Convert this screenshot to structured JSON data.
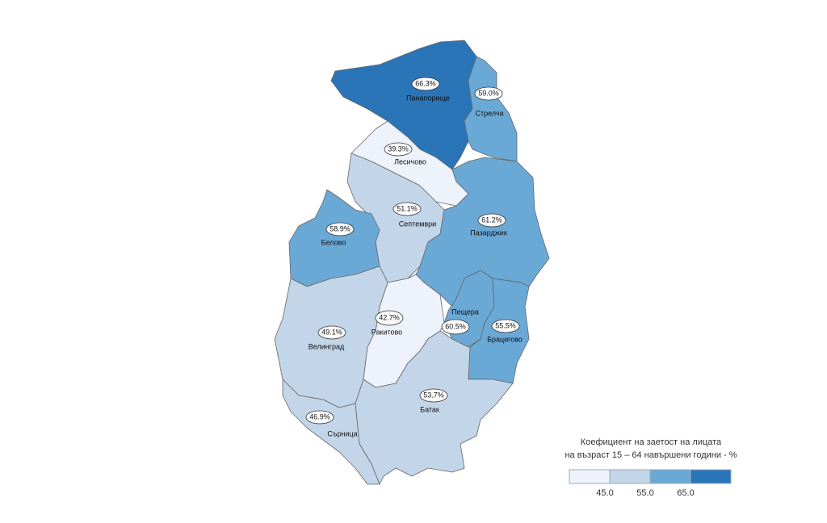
{
  "map": {
    "regions": [
      {
        "name": "Панагюрище",
        "value": 66.3,
        "value_label": "66.3%"
      },
      {
        "name": "Стрелча",
        "value": 59.0,
        "value_label": "59.0%"
      },
      {
        "name": "Лесичово",
        "value": 39.3,
        "value_label": "39.3%"
      },
      {
        "name": "Септември",
        "value": 51.1,
        "value_label": "51.1%"
      },
      {
        "name": "Белово",
        "value": 58.9,
        "value_label": "58.9%"
      },
      {
        "name": "Пазарджик",
        "value": 61.2,
        "value_label": "61.2%"
      },
      {
        "name": "Пещера",
        "value": 60.5,
        "value_label": "60.5%"
      },
      {
        "name": "Брацигово",
        "value": 55.5,
        "value_label": "55.5%"
      },
      {
        "name": "Ракитово",
        "value": 42.7,
        "value_label": "42.7%"
      },
      {
        "name": "Велинград",
        "value": 49.1,
        "value_label": "49.1%"
      },
      {
        "name": "Батак",
        "value": 53.7,
        "value_label": "53.7%"
      },
      {
        "name": "Сърница",
        "value": 46.9,
        "value_label": "46.9%"
      }
    ],
    "legend": {
      "title": [
        "Коефициент на заетост на лицата",
        "на възраст 15 – 64 навършени години - %"
      ],
      "breaks": [
        {
          "value": 45,
          "label": "45.0"
        },
        {
          "value": 55,
          "label": "55.0"
        },
        {
          "value": 65,
          "label": "65.0"
        }
      ],
      "colors": [
        "#eef3fb",
        "#c3d5e8",
        "#6aa9d6",
        "#2a75b8"
      ]
    }
  }
}
